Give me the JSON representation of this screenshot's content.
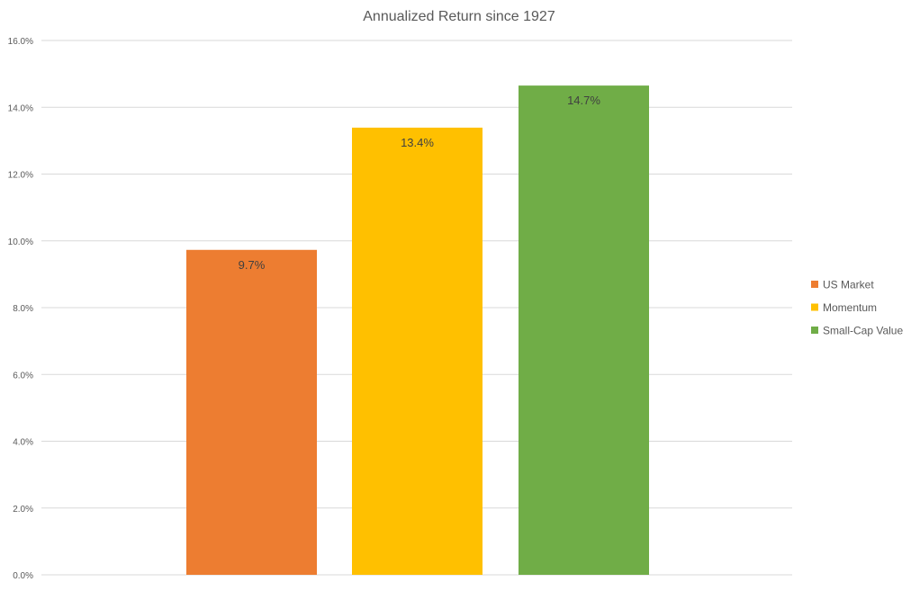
{
  "chart_data": {
    "type": "bar",
    "title": "Annualized Return since 1927",
    "xlabel": "",
    "ylabel": "",
    "ylim": [
      0,
      16
    ],
    "y_unit": "%",
    "y_ticks": [
      {
        "value": 0,
        "label": "0.0%"
      },
      {
        "value": 2,
        "label": "2.0%"
      },
      {
        "value": 4,
        "label": "4.0%"
      },
      {
        "value": 6,
        "label": "6.0%"
      },
      {
        "value": 8,
        "label": "8.0%"
      },
      {
        "value": 10,
        "label": "10.0%"
      },
      {
        "value": 12,
        "label": "12.0%"
      },
      {
        "value": 14,
        "label": "14.0%"
      },
      {
        "value": 16,
        "label": "16.0%"
      }
    ],
    "grid": true,
    "legend_position": "right",
    "series": [
      {
        "name": "US Market",
        "value": 9.73,
        "label": "9.7%",
        "color": "#ED7D31"
      },
      {
        "name": "Momentum",
        "value": 13.39,
        "label": "13.4%",
        "color": "#FFC000"
      },
      {
        "name": "Small-Cap Value",
        "value": 14.65,
        "label": "14.7%",
        "color": "#70AD47"
      }
    ]
  }
}
